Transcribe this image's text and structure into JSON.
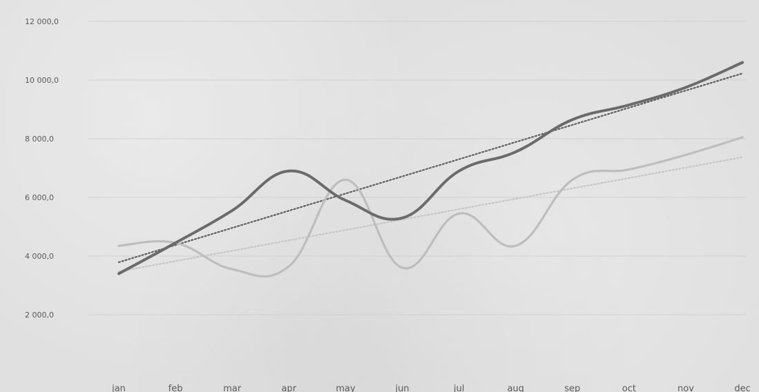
{
  "chart_data": {
    "type": "line",
    "title": "",
    "xlabel": "",
    "ylabel": "",
    "categories": [
      "jan",
      "feb",
      "mar",
      "apr",
      "may",
      "jun",
      "jul",
      "aug",
      "sep",
      "oct",
      "nov",
      "dec"
    ],
    "ylim": [
      0,
      12000
    ],
    "y_ticks": [
      {
        "value": 2000,
        "label": "2 000,0"
      },
      {
        "value": 4000,
        "label": "4 000,0"
      },
      {
        "value": 6000,
        "label": "6 000,0"
      },
      {
        "value": 8000,
        "label": "8 000,0"
      },
      {
        "value": 10000,
        "label": "10 000,0"
      },
      {
        "value": 12000,
        "label": "12 000,0"
      }
    ],
    "grid": true,
    "legend": "none",
    "series": [
      {
        "values": [
          3400,
          4450,
          5550,
          6900,
          5900,
          5300,
          6900,
          7550,
          8650,
          9150,
          9750,
          10600
        ],
        "color": "#6b6b6b",
        "trendline": true,
        "trend_color": "#5d5d5d"
      },
      {
        "values": [
          4350,
          4450,
          3550,
          3650,
          6600,
          3600,
          5450,
          4350,
          6600,
          6950,
          7450,
          8050
        ],
        "color": "#bdbdbd",
        "trendline": true,
        "trend_color": "#c6c6c6"
      }
    ]
  }
}
